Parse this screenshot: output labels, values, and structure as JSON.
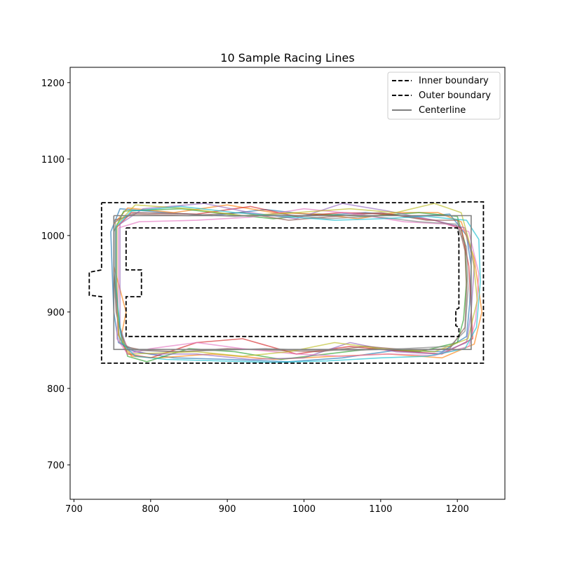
{
  "chart_data": {
    "type": "line",
    "title": "10 Sample Racing Lines",
    "xlabel": "",
    "ylabel": "",
    "xlim": [
      695,
      1262
    ],
    "ylim": [
      655,
      1220
    ],
    "xticks": [
      700,
      800,
      900,
      1000,
      1100,
      1200
    ],
    "yticks": [
      700,
      800,
      900,
      1000,
      1100,
      1200
    ],
    "grid": false,
    "legend_position": "top-right",
    "legend": [
      {
        "label": "Inner boundary",
        "style": "dashed",
        "color": "#000000"
      },
      {
        "label": "Outer boundary",
        "style": "dashed",
        "color": "#000000"
      },
      {
        "label": "Centerline",
        "style": "solid",
        "color": "#808080"
      }
    ],
    "inner_boundary": [
      [
        768,
        1010
      ],
      [
        1200,
        1010
      ],
      [
        1202,
        1000
      ],
      [
        1202,
        905
      ],
      [
        1198,
        903
      ],
      [
        1198,
        882
      ],
      [
        1202,
        880
      ],
      [
        1202,
        868
      ],
      [
        768,
        868
      ],
      [
        768,
        920
      ],
      [
        788,
        920
      ],
      [
        788,
        955
      ],
      [
        768,
        955
      ],
      [
        768,
        1010
      ]
    ],
    "outer_boundary": [
      [
        736,
        1043
      ],
      [
        1198,
        1043
      ],
      [
        1202,
        1044
      ],
      [
        1234,
        1044
      ],
      [
        1234,
        833
      ],
      [
        736,
        833
      ],
      [
        736,
        920
      ],
      [
        720,
        922
      ],
      [
        720,
        952
      ],
      [
        736,
        955
      ],
      [
        736,
        1043
      ]
    ],
    "centerline": [
      [
        752,
        1026
      ],
      [
        1218,
        1026
      ],
      [
        1218,
        851
      ],
      [
        752,
        851
      ],
      [
        752,
        1026
      ]
    ],
    "racing_lines": [
      {
        "color": "#1f77b4",
        "points": [
          [
            748,
            1005
          ],
          [
            760,
            1035
          ],
          [
            820,
            1030
          ],
          [
            880,
            1026
          ],
          [
            950,
            1034
          ],
          [
            1020,
            1026
          ],
          [
            1080,
            1030
          ],
          [
            1140,
            1025
          ],
          [
            1190,
            1028
          ],
          [
            1212,
            1000
          ],
          [
            1218,
            960
          ],
          [
            1216,
            910
          ],
          [
            1212,
            868
          ],
          [
            1180,
            848
          ],
          [
            1120,
            850
          ],
          [
            1050,
            840
          ],
          [
            980,
            835
          ],
          [
            900,
            838
          ],
          [
            830,
            840
          ],
          [
            780,
            848
          ],
          [
            758,
            860
          ],
          [
            752,
            900
          ],
          [
            750,
            950
          ],
          [
            748,
            1005
          ]
        ]
      },
      {
        "color": "#ff7f0e",
        "points": [
          [
            752,
            1015
          ],
          [
            770,
            1036
          ],
          [
            830,
            1030
          ],
          [
            900,
            1040
          ],
          [
            960,
            1030
          ],
          [
            1020,
            1028
          ],
          [
            1070,
            1022
          ],
          [
            1120,
            1030
          ],
          [
            1175,
            1030
          ],
          [
            1205,
            1018
          ],
          [
            1222,
            970
          ],
          [
            1232,
            900
          ],
          [
            1222,
            858
          ],
          [
            1180,
            840
          ],
          [
            1110,
            845
          ],
          [
            1040,
            842
          ],
          [
            960,
            838
          ],
          [
            880,
            845
          ],
          [
            810,
            840
          ],
          [
            775,
            842
          ],
          [
            762,
            870
          ],
          [
            768,
            900
          ],
          [
            752,
            960
          ],
          [
            752,
            1015
          ]
        ]
      },
      {
        "color": "#2ca02c",
        "points": [
          [
            752,
            1005
          ],
          [
            765,
            1032
          ],
          [
            840,
            1035
          ],
          [
            900,
            1028
          ],
          [
            960,
            1022
          ],
          [
            1020,
            1028
          ],
          [
            1080,
            1025
          ],
          [
            1150,
            1030
          ],
          [
            1200,
            1025
          ],
          [
            1210,
            990
          ],
          [
            1212,
            940
          ],
          [
            1208,
            890
          ],
          [
            1200,
            860
          ],
          [
            1150,
            848
          ],
          [
            1090,
            852
          ],
          [
            1030,
            845
          ],
          [
            970,
            838
          ],
          [
            910,
            848
          ],
          [
            850,
            852
          ],
          [
            795,
            835
          ],
          [
            770,
            842
          ],
          [
            760,
            880
          ],
          [
            752,
            950
          ],
          [
            752,
            1005
          ]
        ]
      },
      {
        "color": "#d62728",
        "points": [
          [
            755,
            1010
          ],
          [
            775,
            1030
          ],
          [
            860,
            1028
          ],
          [
            930,
            1038
          ],
          [
            990,
            1025
          ],
          [
            1050,
            1030
          ],
          [
            1110,
            1028
          ],
          [
            1170,
            1020
          ],
          [
            1205,
            1010
          ],
          [
            1215,
            960
          ],
          [
            1218,
            905
          ],
          [
            1220,
            865
          ],
          [
            1180,
            845
          ],
          [
            1110,
            850
          ],
          [
            1060,
            855
          ],
          [
            990,
            845
          ],
          [
            920,
            865
          ],
          [
            860,
            860
          ],
          [
            800,
            840
          ],
          [
            770,
            845
          ],
          [
            758,
            870
          ],
          [
            755,
            940
          ],
          [
            755,
            1010
          ]
        ]
      },
      {
        "color": "#9467bd",
        "points": [
          [
            760,
            1015
          ],
          [
            790,
            1035
          ],
          [
            870,
            1042
          ],
          [
            930,
            1030
          ],
          [
            990,
            1022
          ],
          [
            1050,
            1042
          ],
          [
            1110,
            1032
          ],
          [
            1170,
            1020
          ],
          [
            1210,
            1010
          ],
          [
            1222,
            960
          ],
          [
            1218,
            900
          ],
          [
            1212,
            860
          ],
          [
            1175,
            845
          ],
          [
            1120,
            848
          ],
          [
            1060,
            860
          ],
          [
            1000,
            840
          ],
          [
            930,
            838
          ],
          [
            860,
            845
          ],
          [
            800,
            845
          ],
          [
            770,
            850
          ],
          [
            760,
            880
          ],
          [
            760,
            950
          ],
          [
            760,
            1015
          ]
        ]
      },
      {
        "color": "#8c564b",
        "points": [
          [
            752,
            1020
          ],
          [
            780,
            1028
          ],
          [
            850,
            1026
          ],
          [
            920,
            1030
          ],
          [
            980,
            1020
          ],
          [
            1040,
            1025
          ],
          [
            1100,
            1030
          ],
          [
            1160,
            1020
          ],
          [
            1200,
            1020
          ],
          [
            1210,
            980
          ],
          [
            1212,
            930
          ],
          [
            1210,
            880
          ],
          [
            1190,
            852
          ],
          [
            1140,
            850
          ],
          [
            1080,
            855
          ],
          [
            1020,
            848
          ],
          [
            960,
            850
          ],
          [
            900,
            852
          ],
          [
            840,
            848
          ],
          [
            790,
            850
          ],
          [
            765,
            855
          ],
          [
            755,
            900
          ],
          [
            752,
            960
          ],
          [
            752,
            1020
          ]
        ]
      },
      {
        "color": "#e377c2",
        "points": [
          [
            758,
            1010
          ],
          [
            785,
            1018
          ],
          [
            860,
            1020
          ],
          [
            930,
            1024
          ],
          [
            1000,
            1035
          ],
          [
            1070,
            1028
          ],
          [
            1130,
            1018
          ],
          [
            1185,
            1015
          ],
          [
            1215,
            1005
          ],
          [
            1228,
            950
          ],
          [
            1224,
            890
          ],
          [
            1215,
            855
          ],
          [
            1170,
            843
          ],
          [
            1110,
            845
          ],
          [
            1050,
            842
          ],
          [
            990,
            845
          ],
          [
            920,
            852
          ],
          [
            860,
            860
          ],
          [
            800,
            852
          ],
          [
            770,
            845
          ],
          [
            756,
            865
          ],
          [
            758,
            930
          ],
          [
            758,
            1010
          ]
        ]
      },
      {
        "color": "#7f7f7f",
        "points": [
          [
            754,
            1018
          ],
          [
            780,
            1030
          ],
          [
            850,
            1028
          ],
          [
            910,
            1025
          ],
          [
            970,
            1028
          ],
          [
            1030,
            1022
          ],
          [
            1090,
            1025
          ],
          [
            1150,
            1018
          ],
          [
            1198,
            1015
          ],
          [
            1212,
            985
          ],
          [
            1214,
            930
          ],
          [
            1210,
            875
          ],
          [
            1190,
            855
          ],
          [
            1130,
            852
          ],
          [
            1070,
            850
          ],
          [
            1010,
            850
          ],
          [
            950,
            852
          ],
          [
            890,
            850
          ],
          [
            830,
            848
          ],
          [
            780,
            850
          ],
          [
            760,
            860
          ],
          [
            754,
            920
          ],
          [
            754,
            1018
          ]
        ]
      },
      {
        "color": "#bcbd22",
        "points": [
          [
            756,
            1015
          ],
          [
            780,
            1040
          ],
          [
            850,
            1035
          ],
          [
            920,
            1026
          ],
          [
            990,
            1030
          ],
          [
            1060,
            1035
          ],
          [
            1120,
            1030
          ],
          [
            1170,
            1042
          ],
          [
            1205,
            1030
          ],
          [
            1220,
            975
          ],
          [
            1226,
            915
          ],
          [
            1214,
            865
          ],
          [
            1170,
            848
          ],
          [
            1100,
            852
          ],
          [
            1040,
            860
          ],
          [
            980,
            848
          ],
          [
            920,
            842
          ],
          [
            860,
            848
          ],
          [
            800,
            846
          ],
          [
            772,
            845
          ],
          [
            758,
            870
          ],
          [
            756,
            940
          ],
          [
            756,
            1015
          ]
        ]
      },
      {
        "color": "#17becf",
        "points": [
          [
            755,
            1012
          ],
          [
            775,
            1032
          ],
          [
            840,
            1038
          ],
          [
            910,
            1030
          ],
          [
            975,
            1025
          ],
          [
            1040,
            1020
          ],
          [
            1100,
            1022
          ],
          [
            1160,
            1025
          ],
          [
            1212,
            1020
          ],
          [
            1228,
            995
          ],
          [
            1230,
            940
          ],
          [
            1225,
            880
          ],
          [
            1210,
            852
          ],
          [
            1160,
            842
          ],
          [
            1100,
            840
          ],
          [
            1030,
            836
          ],
          [
            960,
            834
          ],
          [
            890,
            836
          ],
          [
            820,
            838
          ],
          [
            780,
            842
          ],
          [
            762,
            860
          ],
          [
            755,
            930
          ],
          [
            755,
            1012
          ]
        ]
      }
    ]
  }
}
